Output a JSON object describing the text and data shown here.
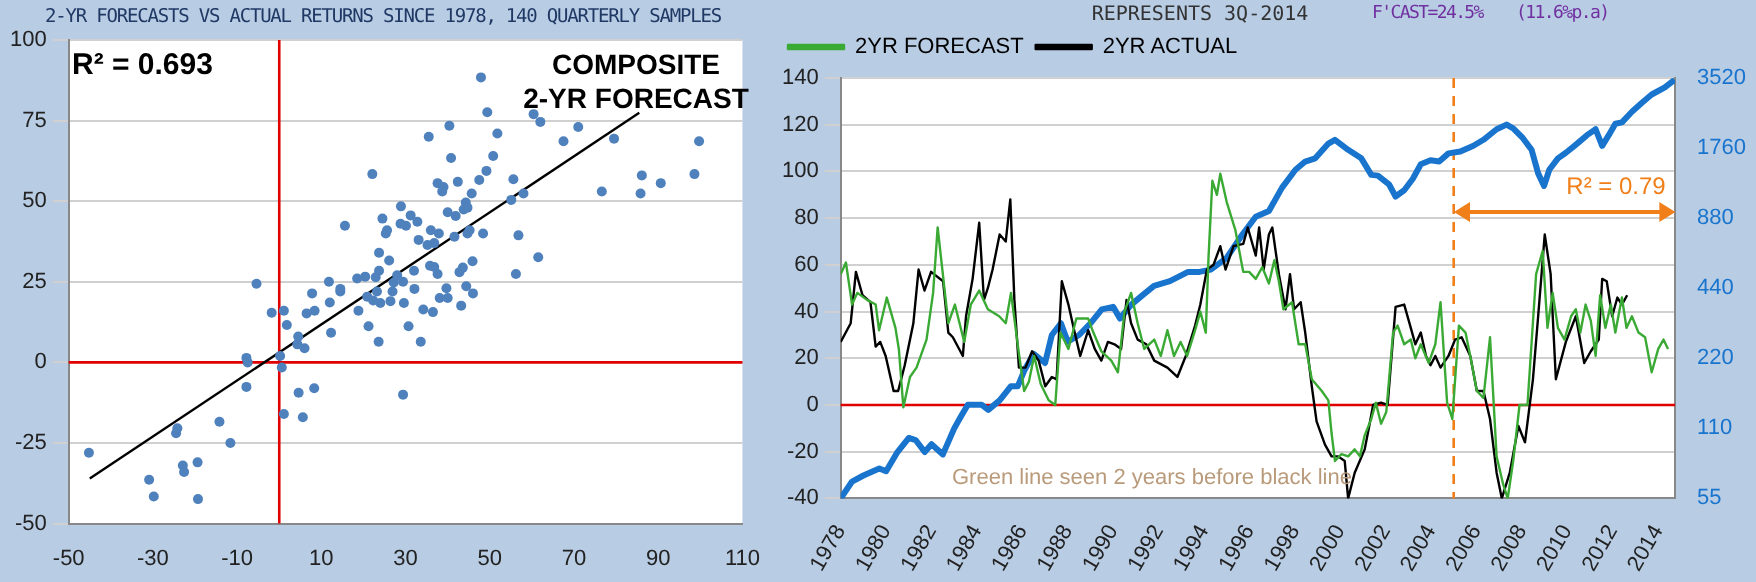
{
  "chart_data": [
    {
      "type": "scatter",
      "title": "2-YR FORECASTS VS ACTUAL RETURNS SINCE 1978, 140 QUARTERLY SAMPLES",
      "marker": "circle",
      "grid": "y",
      "legend": false,
      "xlim": [
        -50,
        110
      ],
      "xticks": [
        -50,
        -30,
        -10,
        10,
        30,
        50,
        70,
        90,
        110
      ],
      "ylim": [
        -50,
        100
      ],
      "yticks": [
        -50,
        -25,
        0,
        25,
        50,
        75,
        100
      ],
      "ref_lines": [
        {
          "axis": "x",
          "value": 0,
          "color": "#e00000"
        },
        {
          "axis": "y",
          "value": 0,
          "color": "#e00000"
        }
      ],
      "annotations": [
        "R² = 0.693",
        "COMPOSITE",
        "2-YR FORECAST"
      ],
      "series": [
        {
          "color": "#4f81bd",
          "x": [
            -45.2,
            -30.9,
            -29.8,
            -24.5,
            -24.2,
            -22.9,
            -22.6,
            -19.4,
            -19.3,
            -14.2,
            -11.6,
            -7.8,
            -7.5,
            -7.8,
            -5.4,
            -1.8,
            0.2,
            0.6,
            1.1,
            1.8,
            1.1,
            4.3,
            4.5,
            4.6,
            5.6,
            6,
            6.5,
            7.8,
            8.3,
            8.4,
            11.8,
            12,
            12.3,
            14.5,
            14.5,
            15.6,
            18.8,
            18.5,
            20.4,
            20.9,
            21.2,
            22.1,
            22.3,
            22.9,
            23.2,
            23.7,
            23.7,
            23.6,
            24,
            24.5,
            25.3,
            25.6,
            26.1,
            26.4,
            26.9,
            27.2,
            28,
            28.8,
            28.9,
            29.4,
            29.6,
            29.4,
            30.1,
            30.7,
            31.2,
            32,
            32.1,
            32.8,
            33.1,
            33.6,
            34.2,
            35.2,
            35.5,
            35.8,
            36,
            36.5,
            36.8,
            36.8,
            37.6,
            37.6,
            37.9,
            38.1,
            38.7,
            39,
            39.7,
            40,
            40,
            40.4,
            40.8,
            41.6,
            41.9,
            42.4,
            42.8,
            43.2,
            43.6,
            43.8,
            44.3,
            44.4,
            44.7,
            44.7,
            45.2,
            45.7,
            45.9,
            46,
            47.5,
            47.9,
            48.4,
            49.2,
            49.4,
            50.8,
            51.8,
            55.1,
            55.6,
            56.2,
            56.8,
            58,
            60.4,
            61.5,
            62,
            67.5,
            71,
            76.6,
            79.5,
            85.8,
            86.1,
            90.6,
            98.6,
            99.7
          ],
          "values": [
            -28,
            -36.4,
            -41.6,
            -22,
            -20.4,
            -32,
            -34,
            -31,
            -42.4,
            -18.4,
            -25,
            1.4,
            0,
            -7.6,
            24.4,
            15.4,
            2,
            -1.6,
            16,
            11.6,
            -16,
            5.6,
            8,
            -9.4,
            -17,
            4.4,
            15.2,
            21.4,
            -8,
            16,
            25,
            18.6,
            9.2,
            22,
            22.8,
            42.4,
            16,
            26,
            26.6,
            20.4,
            11.2,
            58.4,
            19.2,
            26.4,
            22,
            34,
            28.4,
            6.4,
            18.4,
            44.6,
            40,
            41,
            31.6,
            19,
            22,
            24.8,
            27,
            43,
            48.4,
            25,
            18.4,
            -10,
            42.4,
            11.2,
            45.6,
            28.4,
            22.8,
            43.6,
            38,
            6.4,
            16.4,
            36.4,
            70,
            30,
            41,
            15.6,
            29.6,
            37,
            55.6,
            27.4,
            40,
            20,
            53,
            54.4,
            23,
            20,
            46.6,
            73.4,
            63.4,
            39,
            45.4,
            56,
            28,
            17.6,
            29.4,
            47.4,
            49.6,
            23.6,
            40,
            48,
            41,
            52.4,
            31.4,
            21.4,
            56.6,
            88.4,
            40,
            59.4,
            77.6,
            64,
            71,
            50.4,
            56.8,
            27.4,
            39.4,
            52.4,
            77,
            32.6,
            74.6,
            68.6,
            73,
            53,
            69.4,
            52.4,
            58,
            55.6,
            58.4,
            68.6
          ]
        },
        {
          "type": "line",
          "color": "#000000",
          "marker": "none",
          "x": [
            -45,
            85.5
          ],
          "values": [
            -36,
            77.4
          ]
        }
      ]
    },
    {
      "type": "line",
      "marker": "none",
      "grid": "y",
      "legend": "top left",
      "xlim": [
        1978,
        2014.75
      ],
      "xticks": [
        1978,
        1980,
        1982,
        1984,
        1986,
        1988,
        1990,
        1992,
        1994,
        1996,
        1998,
        2000,
        2002,
        2004,
        2006,
        2008,
        2010,
        2012,
        2014
      ],
      "ylim": [
        -40,
        140
      ],
      "yticks": [
        -40,
        -20,
        0,
        20,
        40,
        60,
        80,
        100,
        120,
        140
      ],
      "log": "y2",
      "y2lim": [
        55,
        3520
      ],
      "y2ticks": [
        55,
        110,
        220,
        440,
        880,
        1760,
        3520
      ],
      "ref_lines": [
        {
          "axis": "y",
          "value": 0,
          "color": "#e00000"
        },
        {
          "axis": "x",
          "value": 2005,
          "color": "#f07f1a",
          "line_style": "dashed"
        }
      ],
      "annotations": [
        "REPRESENTS 3Q-2014",
        "F'CAST=24.5%",
        "(11.6%p.a)",
        "Green line seen 2 years before black line",
        "R² = 0.79"
      ],
      "series": [
        {
          "name": "2YR FORECAST",
          "color": "#3aaa35",
          "x": [
            1978,
            1978.23,
            1978.5,
            1978.73,
            1979.16,
            1979.54,
            1979.69,
            1980.03,
            1980.41,
            1980.56,
            1980.76,
            1981.05,
            1981.34,
            1981.78,
            1982.07,
            1982.27,
            1982.74,
            1983.03,
            1983.44,
            1983.73,
            1984.1,
            1984.48,
            1984.98,
            1985.27,
            1985.5,
            1985.85,
            1986.08,
            1986.29,
            1986.52,
            1986.81,
            1987.16,
            1987.45,
            1987.68,
            1988.03,
            1988.38,
            1988.9,
            1989.13,
            1989.48,
            1989.92,
            1990.21,
            1990.5,
            1990.79,
            1991.08,
            1991.37,
            1991.81,
            1992.1,
            1992.39,
            1992.68,
            1992.97,
            1993.26,
            1993.64,
            1993.84,
            1994.08,
            1994.2,
            1994.37,
            1994.57,
            1994.72,
            1995,
            1995.38,
            1995.73,
            1995.99,
            1996.28,
            1996.57,
            1996.86,
            1997.1,
            1997.3,
            1997.5,
            1997.88,
            1998.17,
            1998.46,
            1998.75,
            1999.19,
            1999.48,
            1999.62,
            1999.77,
            2000.06,
            2000.35,
            2000.64,
            2000.87,
            2001.08,
            2001.37,
            2001.57,
            2001.8,
            2002.03,
            2002.33,
            2002.53,
            2002.82,
            2003.11,
            2003.31,
            2003.55,
            2003.9,
            2004.19,
            2004.42,
            2004.71,
            2004.94,
            2005.23,
            2005.52,
            2005.73,
            2006.02,
            2006.31,
            2006.6,
            2006.89,
            2007.18,
            2007.38,
            2007.62,
            2007.9,
            2008.25,
            2008.63,
            2008.92,
            2009.13,
            2009.36,
            2009.59,
            2009.88,
            2010.17,
            2010.38,
            2010.58,
            2010.81,
            2011.04,
            2011.25,
            2011.45,
            2011.68,
            2011.92,
            2012.12,
            2012.41,
            2012.61,
            2012.85,
            2013.14,
            2013.43,
            2013.72,
            2014.01,
            2014.24,
            2014.44
          ],
          "values": [
            56,
            61,
            43,
            48,
            45,
            43,
            32,
            46,
            33,
            24,
            -1,
            12,
            16,
            28,
            48,
            76,
            35,
            43,
            27,
            43,
            49,
            41,
            38,
            35,
            48,
            22,
            6,
            10,
            21,
            9,
            2,
            0,
            31,
            24,
            37,
            37,
            31,
            23,
            19,
            14,
            40,
            48,
            35,
            24,
            28,
            21,
            32,
            21,
            27,
            21,
            33,
            40,
            31,
            63,
            96,
            90,
            99,
            87,
            75,
            57,
            57,
            54,
            59,
            52,
            62,
            53,
            41,
            44,
            26,
            26,
            11,
            6,
            2,
            -12,
            -24,
            -21,
            -22,
            -19,
            -22,
            -13,
            -6,
            1,
            -8,
            -3,
            31,
            34,
            26,
            28,
            20,
            26,
            18,
            26,
            44,
            1,
            -6,
            34,
            31,
            21,
            6,
            3,
            29,
            -22,
            -34,
            -40,
            -24,
            0,
            0,
            56,
            66,
            33,
            48,
            33,
            28,
            38,
            41,
            31,
            43,
            36,
            21,
            47,
            33,
            43,
            31,
            46,
            33,
            38,
            31,
            29,
            14,
            24,
            28,
            24
          ]
        },
        {
          "name": "2YR ACTUAL",
          "color": "#000000",
          "x": [
            1978,
            1978.44,
            1978.67,
            1978.96,
            1979.31,
            1979.54,
            1979.74,
            1979.98,
            1980.33,
            1980.53,
            1980.82,
            1981.2,
            1981.43,
            1981.69,
            1981.98,
            1982.51,
            1982.74,
            1982.94,
            1983.38,
            1983.52,
            1983.81,
            1984.1,
            1984.31,
            1984.48,
            1984.69,
            1985,
            1985.27,
            1985.47,
            1985.65,
            1985.85,
            1986.14,
            1986.43,
            1986.72,
            1987.01,
            1987.3,
            1987.51,
            1987.74,
            1988.03,
            1988.26,
            1988.55,
            1988.9,
            1989.19,
            1989.48,
            1989.77,
            1990.06,
            1990.35,
            1990.59,
            1990.79,
            1991.08,
            1991.46,
            1991.81,
            1992.39,
            1992.83,
            1993.2,
            1993.61,
            1993.84,
            1994.13,
            1994.42,
            1994.72,
            1994.95,
            1995.3,
            1995.73,
            1995.93,
            1996.28,
            1996.43,
            1996.63,
            1996.86,
            1997.01,
            1997.3,
            1997.59,
            1997.79,
            1997.97,
            1998.26,
            1998.46,
            1998.75,
            1998.96,
            1999.33,
            1999.62,
            1999.91,
            2000.2,
            2000.35,
            2000.64,
            2001.08,
            2001.28,
            2001.45,
            2001.8,
            2002.09,
            2002.44,
            2002.82,
            2003.11,
            2003.31,
            2003.55,
            2003.78,
            2003.98,
            2004.19,
            2004.42,
            2004.77,
            2005.06,
            2005.35,
            2005.73,
            2006.02,
            2006.31,
            2006.6,
            2006.89,
            2007.12,
            2007.47,
            2007.85,
            2008.14,
            2008.49,
            2008.72,
            2009.01,
            2009.27,
            2009.5,
            2009.94,
            2010.38,
            2010.75,
            2011.04,
            2011.39,
            2011.54,
            2011.74,
            2011.98,
            2012.21,
            2012.41,
            2012.64
          ],
          "values": [
            27,
            35,
            57,
            47,
            44,
            25,
            27,
            21,
            6,
            6,
            17,
            35,
            58,
            49,
            57,
            53,
            31,
            29,
            21,
            38,
            54,
            78,
            45,
            50,
            58,
            73,
            70,
            88,
            45,
            16,
            16,
            23,
            19,
            8,
            12,
            11,
            53,
            43,
            33,
            21,
            32,
            24,
            19,
            27,
            26,
            24,
            45,
            35,
            28,
            26,
            19,
            16,
            12,
            21,
            34,
            43,
            58,
            60,
            68,
            58,
            68,
            69,
            76,
            64,
            76,
            58,
            73,
            76,
            56,
            41,
            56,
            41,
            44,
            31,
            8,
            -7,
            -17,
            -22,
            -22,
            -24,
            -40,
            -29,
            -19,
            -9,
            0,
            1,
            0,
            42,
            43,
            33,
            26,
            31,
            21,
            17,
            21,
            16,
            21,
            28,
            29,
            21,
            6,
            6,
            -6,
            -29,
            -40,
            -29,
            -9,
            -16,
            11,
            38,
            73,
            56,
            11,
            27,
            38,
            18,
            23,
            28,
            54,
            53,
            38,
            46,
            43,
            47
          ]
        },
        {
          "axis": "y2",
          "color": "#1874cd",
          "x": [
            1978,
            1978.5,
            1979,
            1979.7,
            1980,
            1980.5,
            1981,
            1981.3,
            1981.7,
            1982,
            1982.5,
            1983,
            1983.3,
            1983.6,
            1984.2,
            1984.5,
            1985,
            1985.5,
            1985.8,
            1986.1,
            1986.5,
            1987,
            1987.3,
            1987.7,
            1988,
            1988.5,
            1989,
            1989.5,
            1990,
            1990.3,
            1990.8,
            1991.3,
            1991.8,
            1992.5,
            1993.3,
            1993.8,
            1994.3,
            1995,
            1995.7,
            1996.28,
            1996.86,
            1997.44,
            1998.03,
            1998.46,
            1998.9,
            1999.48,
            1999.77,
            2000.35,
            2000.93,
            2001.37,
            2001.66,
            2002.15,
            2002.44,
            2002.82,
            2003.2,
            2003.55,
            2003.98,
            2004.36,
            2004.77,
            2005.29,
            2005.87,
            2006.31,
            2006.89,
            2007.33,
            2007.62,
            2008.05,
            2008.43,
            2008.72,
            2008.98,
            2009.21,
            2009.59,
            2009.94,
            2010.29,
            2010.58,
            2010.87,
            2011.25,
            2011.54,
            2011.83,
            2012.12,
            2012.41,
            2012.85,
            2013.28,
            2013.72,
            2014.3,
            2014.73
          ],
          "values": [
            55,
            65,
            69,
            74,
            72,
            87,
            100,
            98,
            87,
            94,
            85,
            110,
            124,
            139,
            139,
            132,
            145,
            167,
            167,
            196,
            230,
            210,
            277,
            311,
            259,
            277,
            311,
            357,
            366,
            326,
            374,
            411,
            450,
            472,
            517,
            517,
            529,
            594,
            750,
            892,
            945,
            1190,
            1420,
            1540,
            1590,
            1840,
            1910,
            1730,
            1590,
            1350,
            1340,
            1230,
            1090,
            1160,
            1300,
            1500,
            1560,
            1540,
            1670,
            1700,
            1800,
            1910,
            2120,
            2220,
            2140,
            1940,
            1730,
            1370,
            1210,
            1420,
            1590,
            1680,
            1790,
            1890,
            2000,
            2120,
            1800,
            2000,
            2240,
            2270,
            2520,
            2750,
            2990,
            3210,
            3460
          ]
        }
      ]
    }
  ]
}
